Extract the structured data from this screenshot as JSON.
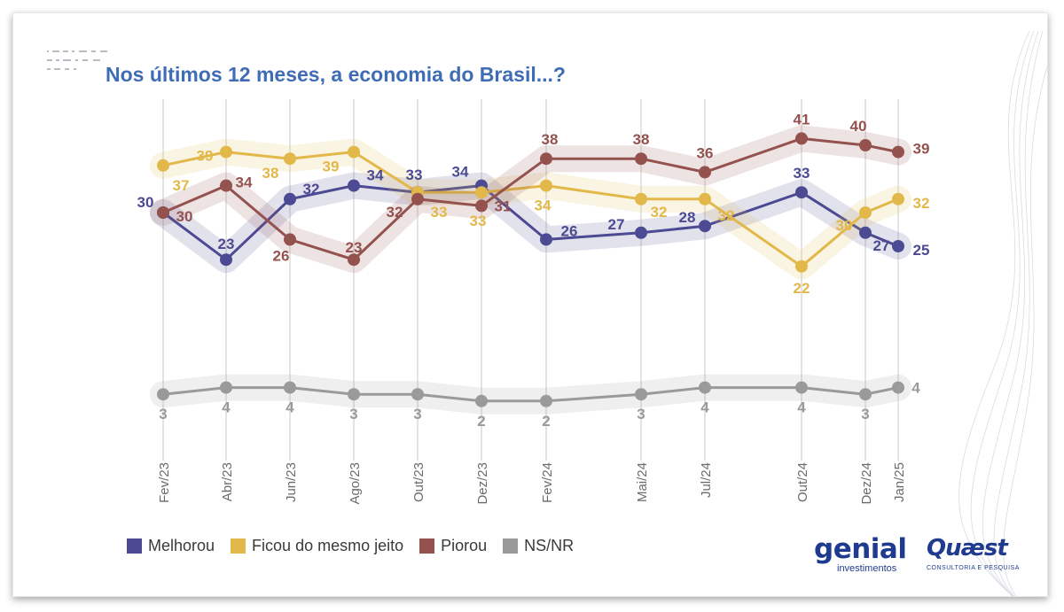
{
  "title": "Nos últimos 12 meses, a economia do Brasil...?",
  "chart_data": {
    "type": "line",
    "title": "Nos últimos 12 meses, a economia do Brasil...?",
    "categories": [
      "Fev/23",
      "Abr/23",
      "Jun/23",
      "Ago/23",
      "Out/23",
      "Dez/23",
      "Fev/24",
      "Mai/24",
      "Jul/24",
      "Out/24",
      "Dez/24",
      "Jan/25"
    ],
    "series": [
      {
        "name": "Melhorou",
        "color": "#4b4a92",
        "values": [
          30,
          23,
          32,
          34,
          33,
          34,
          26,
          27,
          28,
          33,
          27,
          25
        ]
      },
      {
        "name": "Ficou do mesmo jeito",
        "color": "#e2b84a",
        "values": [
          37,
          39,
          38,
          39,
          33,
          33,
          34,
          32,
          32,
          22,
          30,
          32
        ]
      },
      {
        "name": "Piorou",
        "color": "#94524e",
        "values": [
          30,
          34,
          26,
          23,
          32,
          31,
          38,
          38,
          36,
          41,
          40,
          39
        ]
      },
      {
        "name": "NS/NR",
        "color": "#9a9a9a",
        "values": [
          3,
          4,
          4,
          3,
          3,
          2,
          2,
          3,
          4,
          4,
          3,
          4
        ]
      }
    ],
    "xlabel": "",
    "ylabel": "",
    "grid": "vertical lines",
    "legend": "bottom-left"
  },
  "logos": {
    "genial": "genial",
    "genial_sub": "investimentos",
    "quaest": "Quæst",
    "quaest_sub": "CONSULTORIA E PESQUISA"
  }
}
